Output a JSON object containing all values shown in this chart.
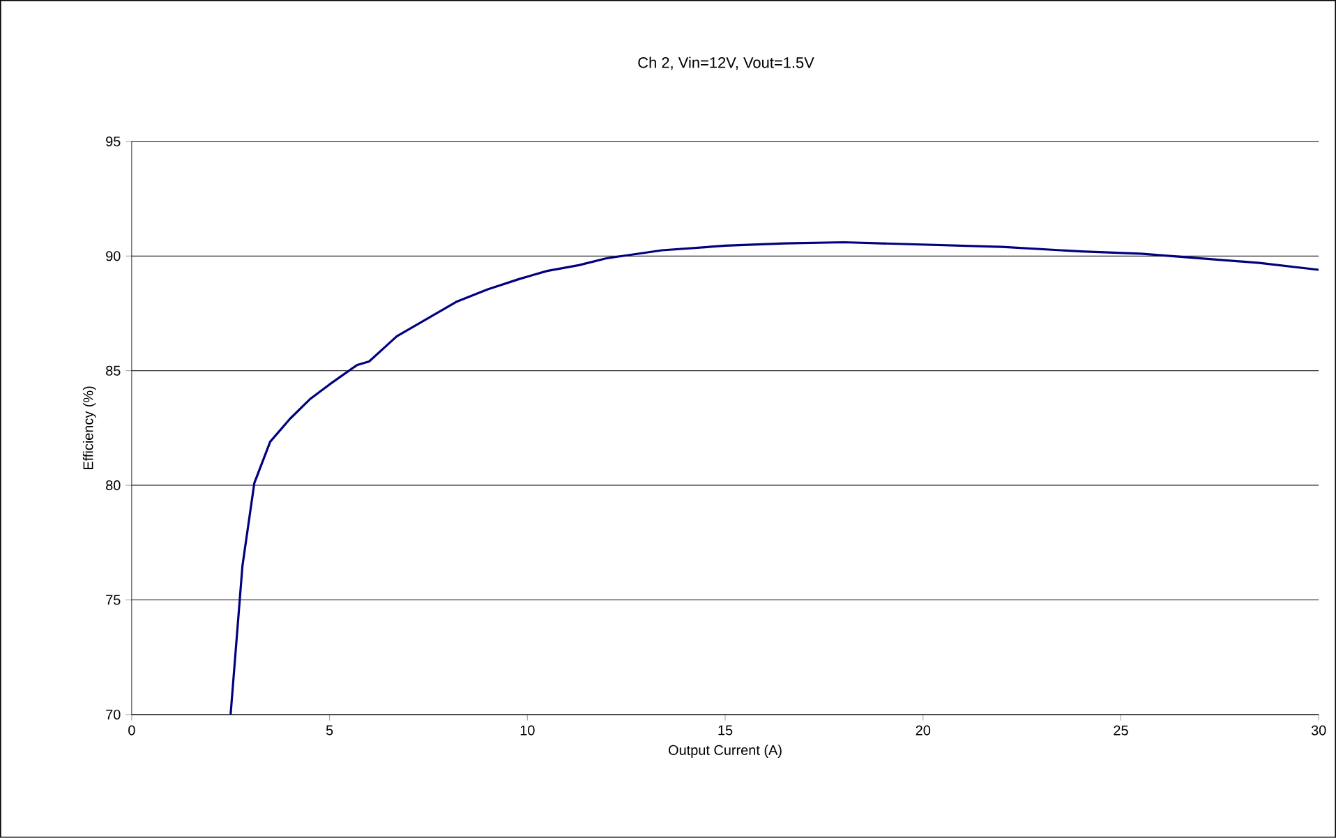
{
  "chart_data": {
    "type": "line",
    "title": "Ch 2, Vin=12V, Vout=1.5V",
    "xlabel": "Output Current (A)",
    "ylabel": "Efficiency (%)",
    "x": [
      2.5,
      2.8,
      3.1,
      3.5,
      4.0,
      4.5,
      5.0,
      5.7,
      6.0,
      6.7,
      7.5,
      8.2,
      9.0,
      9.8,
      10.5,
      11.3,
      12.0,
      13.4,
      15.0,
      16.5,
      18.0,
      20.0,
      22.0,
      24.0,
      25.5,
      27.0,
      28.5,
      30.0
    ],
    "series": [
      {
        "color": "#000080",
        "values": [
          70,
          76.5,
          80.1,
          81.9,
          82.9,
          83.75,
          84.4,
          85.25,
          85.4,
          86.5,
          87.3,
          88.0,
          88.55,
          89.0,
          89.35,
          89.6,
          89.9,
          90.25,
          90.45,
          90.55,
          90.6,
          90.5,
          90.4,
          90.2,
          90.1,
          89.9,
          89.7,
          89.4
        ]
      }
    ],
    "xlim": [
      0,
      30
    ],
    "ylim": [
      70,
      95
    ],
    "xticks": [
      0,
      5,
      10,
      15,
      20,
      25,
      30
    ],
    "yticks": [
      70,
      75,
      80,
      85,
      90,
      95
    ],
    "grid": "y",
    "marker": "none",
    "line_style": "solid"
  }
}
